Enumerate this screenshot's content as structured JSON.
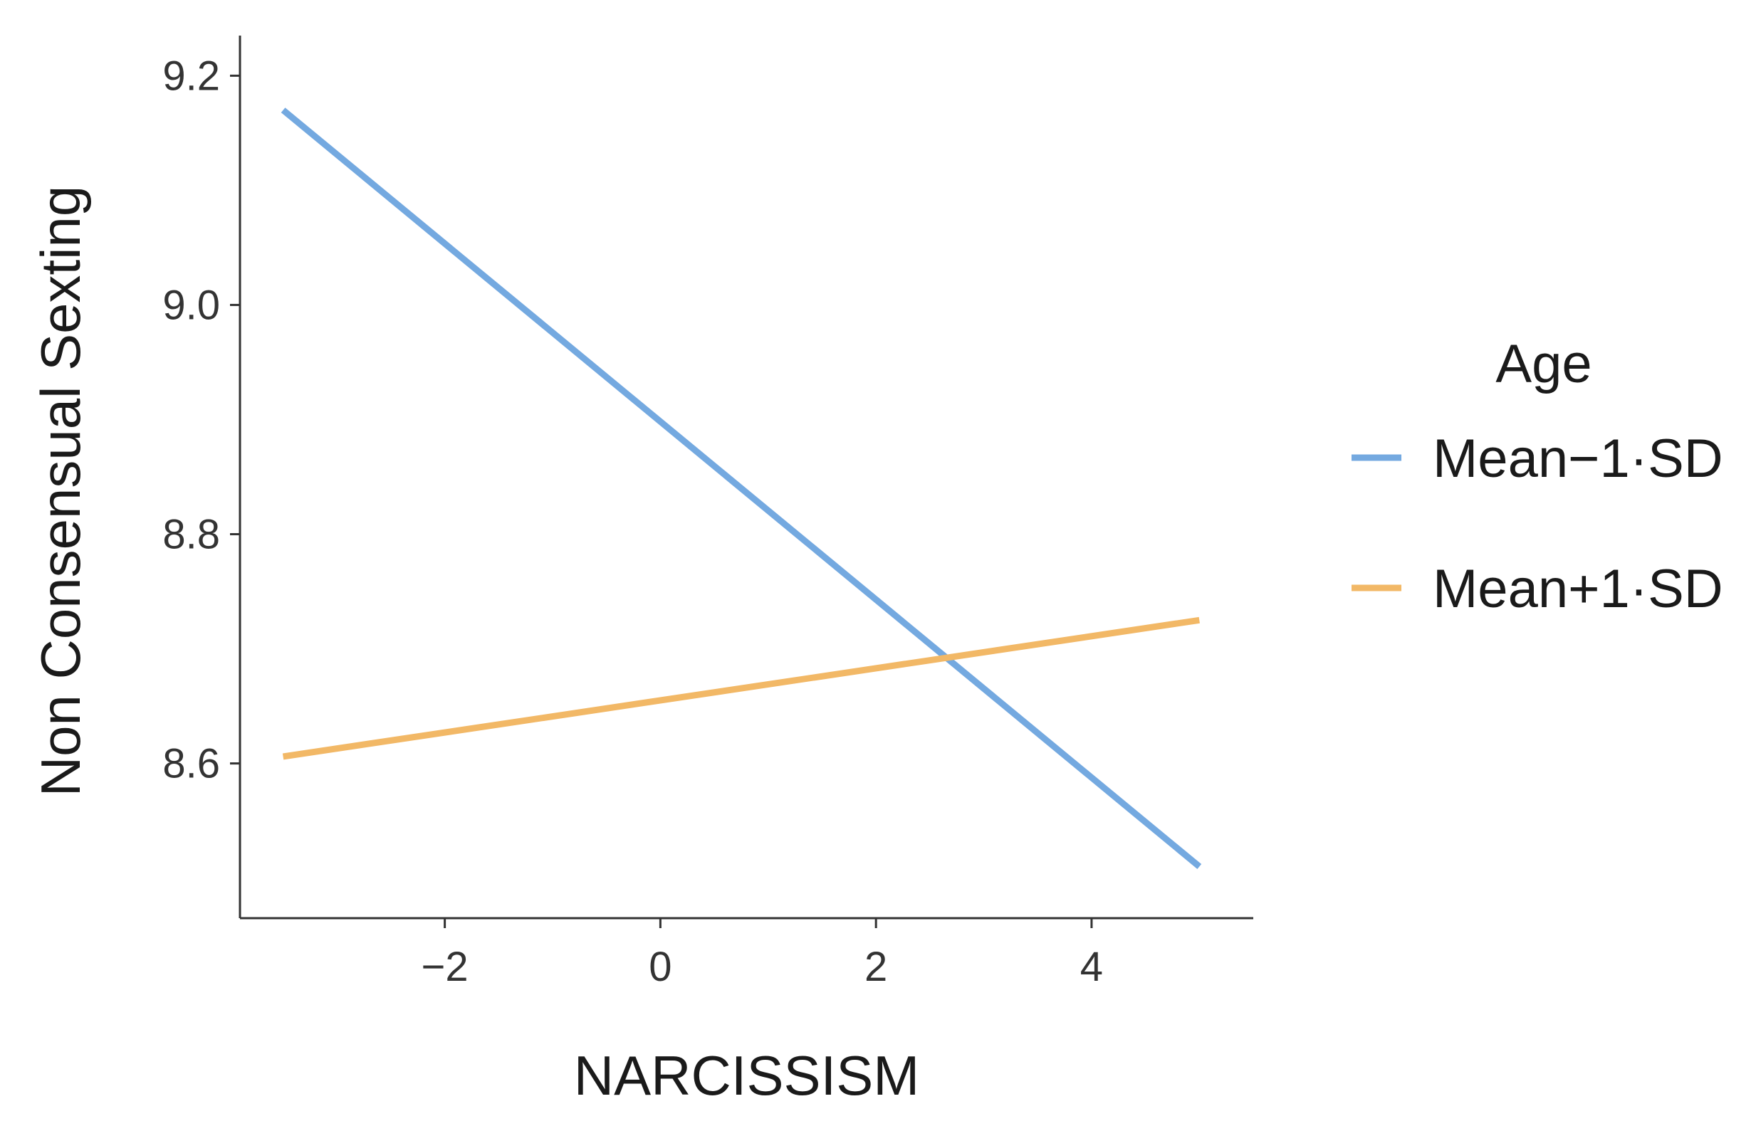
{
  "chart_data": {
    "type": "line",
    "xlabel": "NARCISSISM",
    "ylabel": "Non Consensual  Sexting",
    "xlim": [
      -3.9,
      5.5
    ],
    "ylim": [
      8.465,
      9.235
    ],
    "xticks": [
      -2,
      0,
      2,
      4
    ],
    "xtick_labels": [
      "−2",
      "0",
      "2",
      "4"
    ],
    "yticks": [
      8.6,
      8.8,
      9.0,
      9.2
    ],
    "ytick_labels": [
      "8.6",
      "8.8",
      "9.0",
      "9.2"
    ],
    "grid": false,
    "legend": {
      "title": "Age",
      "position": "right"
    },
    "series": [
      {
        "name": "Mean−1·SD",
        "color": "#74a9e0",
        "x": [
          -3.5,
          5.0
        ],
        "y": [
          9.17,
          8.51
        ]
      },
      {
        "name": "Mean+1·SD",
        "color": "#f2b866",
        "x": [
          -3.5,
          5.0
        ],
        "y": [
          8.606,
          8.725
        ]
      }
    ]
  }
}
